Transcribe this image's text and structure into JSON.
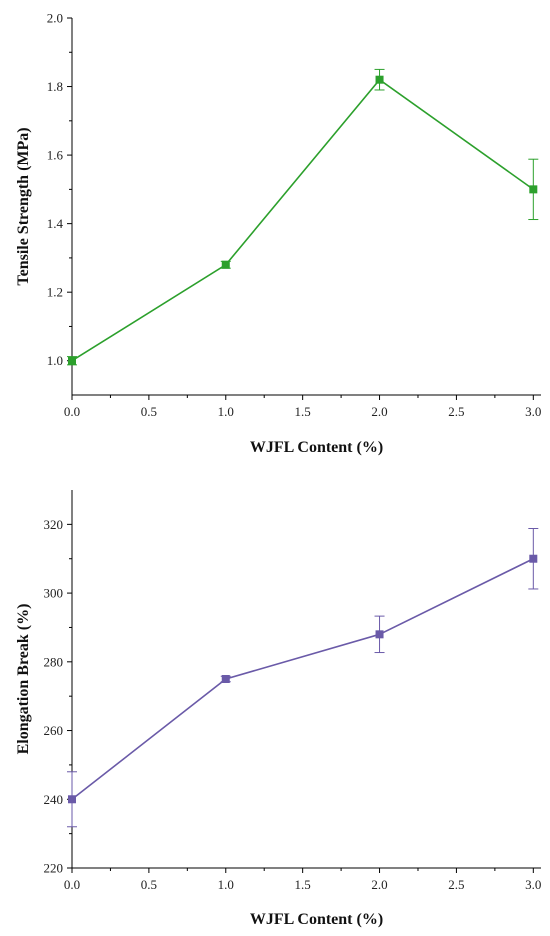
{
  "chart_data": [
    {
      "type": "line",
      "xlabel": "WJFL Content (%)",
      "ylabel": "Tensile Strength (MPa)",
      "xlim": [
        0,
        3.05
      ],
      "ylim": [
        0.9,
        2.0
      ],
      "xticks": [
        0,
        0.5,
        1,
        1.5,
        2,
        2.5,
        3
      ],
      "xtick_labels": [
        "0.0",
        "0.5",
        "1.0",
        "1.5",
        "2.0",
        "2.5",
        "3.0"
      ],
      "yticks": [
        1.0,
        1.2,
        1.4,
        1.6,
        1.8,
        2.0
      ],
      "ytick_labels": [
        "1.0",
        "1.2",
        "1.4",
        "1.6",
        "1.8",
        "2.0"
      ],
      "color": "#2ca02c",
      "marker": "square",
      "grid": false,
      "series": [
        {
          "x": [
            0,
            1,
            2,
            3
          ],
          "values": [
            1.0,
            1.28,
            1.82,
            1.5
          ],
          "errors": [
            0.012,
            0.01,
            0.03,
            0.088
          ]
        }
      ]
    },
    {
      "type": "line",
      "xlabel": "WJFL Content (%)",
      "ylabel": "Elongation Break (%)",
      "xlim": [
        0,
        3.05
      ],
      "ylim": [
        220,
        330
      ],
      "xticks": [
        0,
        0.5,
        1,
        1.5,
        2,
        2.5,
        3
      ],
      "xtick_labels": [
        "0.0",
        "0.5",
        "1.0",
        "1.5",
        "2.0",
        "2.5",
        "3.0"
      ],
      "yticks": [
        220,
        240,
        260,
        280,
        300,
        320
      ],
      "ytick_labels": [
        "220",
        "240",
        "260",
        "280",
        "300",
        "320"
      ],
      "color": "#6a5aa8",
      "marker": "square",
      "grid": false,
      "series": [
        {
          "x": [
            0,
            1,
            2,
            3
          ],
          "values": [
            240,
            275,
            288,
            310
          ],
          "errors": [
            8,
            0.8,
            5.3,
            8.8
          ]
        }
      ]
    }
  ]
}
